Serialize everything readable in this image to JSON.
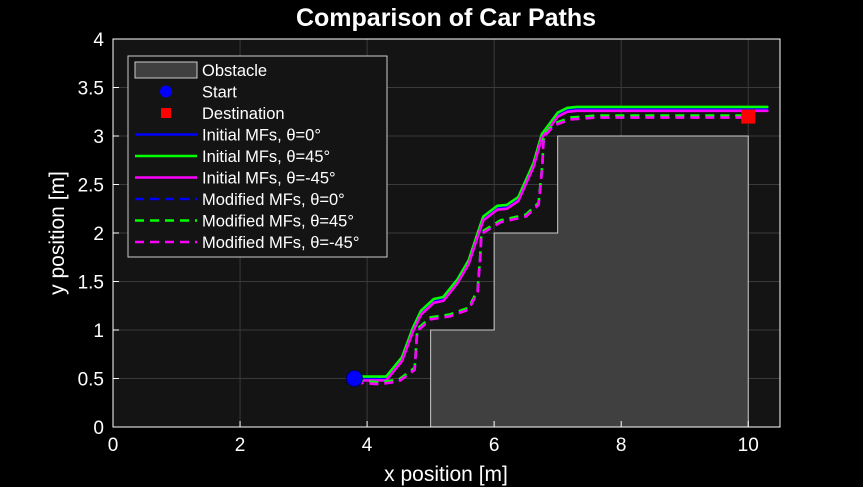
{
  "chart_data": {
    "type": "line",
    "title": "Comparison of Car Paths",
    "xlabel": "x position [m]",
    "ylabel": "y position [m]",
    "xlim": [
      0,
      10.5
    ],
    "ylim": [
      0,
      4
    ],
    "xticks": [
      0,
      2,
      4,
      6,
      8,
      10
    ],
    "yticks": [
      0,
      0.5,
      1,
      1.5,
      2,
      2.5,
      3,
      3.5,
      4
    ],
    "xticklabels": [
      "0",
      "2",
      "4",
      "6",
      "8",
      "10"
    ],
    "yticklabels": [
      "0",
      "0.5",
      "1",
      "1.5",
      "2",
      "2.5",
      "3",
      "3.5",
      "4"
    ],
    "grid": true,
    "legend_position": "top-left",
    "colors": {
      "background": "#000000",
      "axes": "#141414",
      "grid": "#3a3a3a",
      "obstacle_fill": "#404040",
      "obstacle_edge": "#cccccc"
    },
    "obstacle": {
      "name": "Obstacle",
      "x": [
        5,
        5,
        6,
        6,
        7,
        7,
        10,
        10
      ],
      "y": [
        0,
        1,
        1,
        2,
        2,
        3,
        3,
        0
      ]
    },
    "start": {
      "name": "Start",
      "x": 3.8,
      "y": 0.5,
      "color": "#0000ff"
    },
    "destination": {
      "name": "Destination",
      "x": 10,
      "y": 3.2,
      "color": "#ff0000"
    },
    "series": [
      {
        "name": "Initial MFs, θ=0°",
        "color": "#0000ff",
        "dash": "solid",
        "x": [
          3.8,
          4.3,
          4.55,
          4.72,
          4.85,
          5.05,
          5.2,
          5.42,
          5.6,
          5.75,
          5.83,
          6.05,
          6.2,
          6.38,
          6.62,
          6.75,
          6.9,
          7.0,
          7.15,
          7.3,
          10.3
        ],
        "y": [
          0.5,
          0.5,
          0.7,
          1.0,
          1.18,
          1.3,
          1.32,
          1.5,
          1.7,
          2.0,
          2.15,
          2.26,
          2.27,
          2.35,
          2.7,
          3.0,
          3.13,
          3.22,
          3.27,
          3.28,
          3.28
        ]
      },
      {
        "name": "Initial MFs, θ=45°",
        "color": "#00ff00",
        "dash": "solid",
        "x": [
          3.8,
          4.3,
          4.55,
          4.72,
          4.85,
          5.05,
          5.2,
          5.42,
          5.6,
          5.75,
          5.83,
          6.05,
          6.2,
          6.38,
          6.62,
          6.75,
          6.9,
          7.0,
          7.15,
          7.3,
          10.3
        ],
        "y": [
          0.52,
          0.52,
          0.72,
          1.02,
          1.2,
          1.32,
          1.34,
          1.52,
          1.72,
          2.02,
          2.17,
          2.28,
          2.29,
          2.37,
          2.72,
          3.02,
          3.15,
          3.24,
          3.29,
          3.3,
          3.3
        ]
      },
      {
        "name": "Initial MFs, θ=-45°",
        "color": "#ff00ff",
        "dash": "solid",
        "x": [
          3.8,
          4.3,
          4.55,
          4.72,
          4.85,
          5.05,
          5.2,
          5.42,
          5.6,
          5.75,
          5.83,
          6.05,
          6.2,
          6.38,
          6.62,
          6.75,
          6.9,
          7.0,
          7.15,
          7.3,
          10.3
        ],
        "y": [
          0.48,
          0.48,
          0.68,
          0.98,
          1.16,
          1.28,
          1.3,
          1.48,
          1.68,
          1.98,
          2.13,
          2.24,
          2.25,
          2.33,
          2.68,
          2.98,
          3.11,
          3.2,
          3.25,
          3.26,
          3.26
        ]
      },
      {
        "name": "Modified MFs, θ=0°",
        "color": "#0000ff",
        "dash": "dashed",
        "x": [
          3.8,
          4.2,
          4.5,
          4.75,
          4.77,
          4.79,
          5.0,
          5.3,
          5.6,
          5.74,
          5.78,
          5.8,
          6.1,
          6.5,
          6.7,
          6.76,
          6.78,
          6.95,
          7.2,
          7.6,
          10.0
        ],
        "y": [
          0.47,
          0.45,
          0.48,
          0.6,
          0.8,
          1.0,
          1.12,
          1.15,
          1.22,
          1.4,
          1.75,
          2.0,
          2.12,
          2.18,
          2.3,
          2.7,
          3.0,
          3.12,
          3.18,
          3.2,
          3.2
        ]
      },
      {
        "name": "Modified MFs, θ=45°",
        "color": "#00ff00",
        "dash": "dashed",
        "x": [
          3.8,
          4.2,
          4.5,
          4.75,
          4.77,
          4.79,
          5.0,
          5.3,
          5.6,
          5.74,
          5.78,
          5.8,
          6.1,
          6.5,
          6.7,
          6.76,
          6.78,
          6.95,
          7.2,
          7.6,
          10.0
        ],
        "y": [
          0.48,
          0.46,
          0.49,
          0.61,
          0.81,
          1.01,
          1.13,
          1.16,
          1.23,
          1.41,
          1.76,
          2.01,
          2.13,
          2.19,
          2.31,
          2.71,
          3.01,
          3.13,
          3.19,
          3.21,
          3.21
        ]
      },
      {
        "name": "Modified MFs, θ=-45°",
        "color": "#ff00ff",
        "dash": "dashed",
        "x": [
          3.8,
          4.2,
          4.5,
          4.75,
          4.77,
          4.79,
          5.0,
          5.3,
          5.6,
          5.74,
          5.78,
          5.8,
          6.1,
          6.5,
          6.7,
          6.76,
          6.78,
          6.95,
          7.2,
          7.6,
          10.0
        ],
        "y": [
          0.46,
          0.44,
          0.47,
          0.59,
          0.79,
          0.99,
          1.11,
          1.14,
          1.21,
          1.39,
          1.74,
          1.99,
          2.11,
          2.17,
          2.29,
          2.69,
          2.99,
          3.11,
          3.17,
          3.19,
          3.19
        ]
      }
    ]
  }
}
